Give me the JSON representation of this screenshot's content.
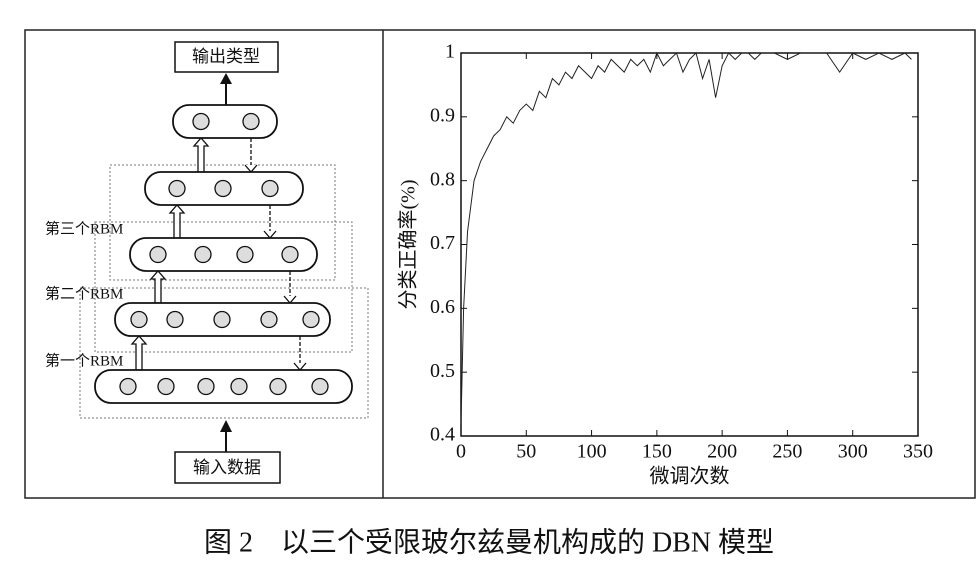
{
  "diagram": {
    "output_label": "输出类型",
    "input_label": "输入数据",
    "rbm_labels": [
      "第三个RBM",
      "第二个RBM",
      "第一个RBM"
    ]
  },
  "chart_data": {
    "type": "line",
    "ylabel": "分类正确率(%)",
    "xlabel": "微调次数",
    "x": [
      0,
      2,
      5,
      10,
      15,
      20,
      25,
      30,
      35,
      40,
      45,
      50,
      55,
      60,
      65,
      70,
      75,
      80,
      85,
      90,
      95,
      100,
      105,
      110,
      115,
      120,
      125,
      130,
      135,
      140,
      145,
      150,
      155,
      160,
      165,
      170,
      175,
      180,
      185,
      190,
      195,
      200,
      205,
      210,
      215,
      220,
      225,
      230,
      240,
      250,
      260,
      270,
      280,
      290,
      300,
      310,
      320,
      330,
      340,
      345
    ],
    "values": [
      0.42,
      0.6,
      0.72,
      0.8,
      0.83,
      0.85,
      0.87,
      0.88,
      0.9,
      0.89,
      0.91,
      0.92,
      0.91,
      0.94,
      0.93,
      0.96,
      0.95,
      0.97,
      0.96,
      0.98,
      0.97,
      0.96,
      0.98,
      0.97,
      0.99,
      0.98,
      0.97,
      0.99,
      0.98,
      0.99,
      0.97,
      1.0,
      0.98,
      0.99,
      1.0,
      0.97,
      0.99,
      1.0,
      0.96,
      0.99,
      0.93,
      0.98,
      1.0,
      0.99,
      1.0,
      1.0,
      0.99,
      1.0,
      1.0,
      0.99,
      1.0,
      1.0,
      1.0,
      0.97,
      1.0,
      0.99,
      1.0,
      0.99,
      1.0,
      0.99
    ],
    "color": "#222222",
    "xlim": [
      0,
      350
    ],
    "ylim": [
      0.4,
      1
    ],
    "xticks": [
      0,
      50,
      100,
      150,
      200,
      250,
      300,
      350
    ],
    "yticks": [
      0.4,
      0.5,
      0.6,
      0.7,
      0.8,
      0.9,
      1
    ]
  },
  "caption": "图 2　以三个受限玻尔兹曼机构成的 DBN 模型"
}
